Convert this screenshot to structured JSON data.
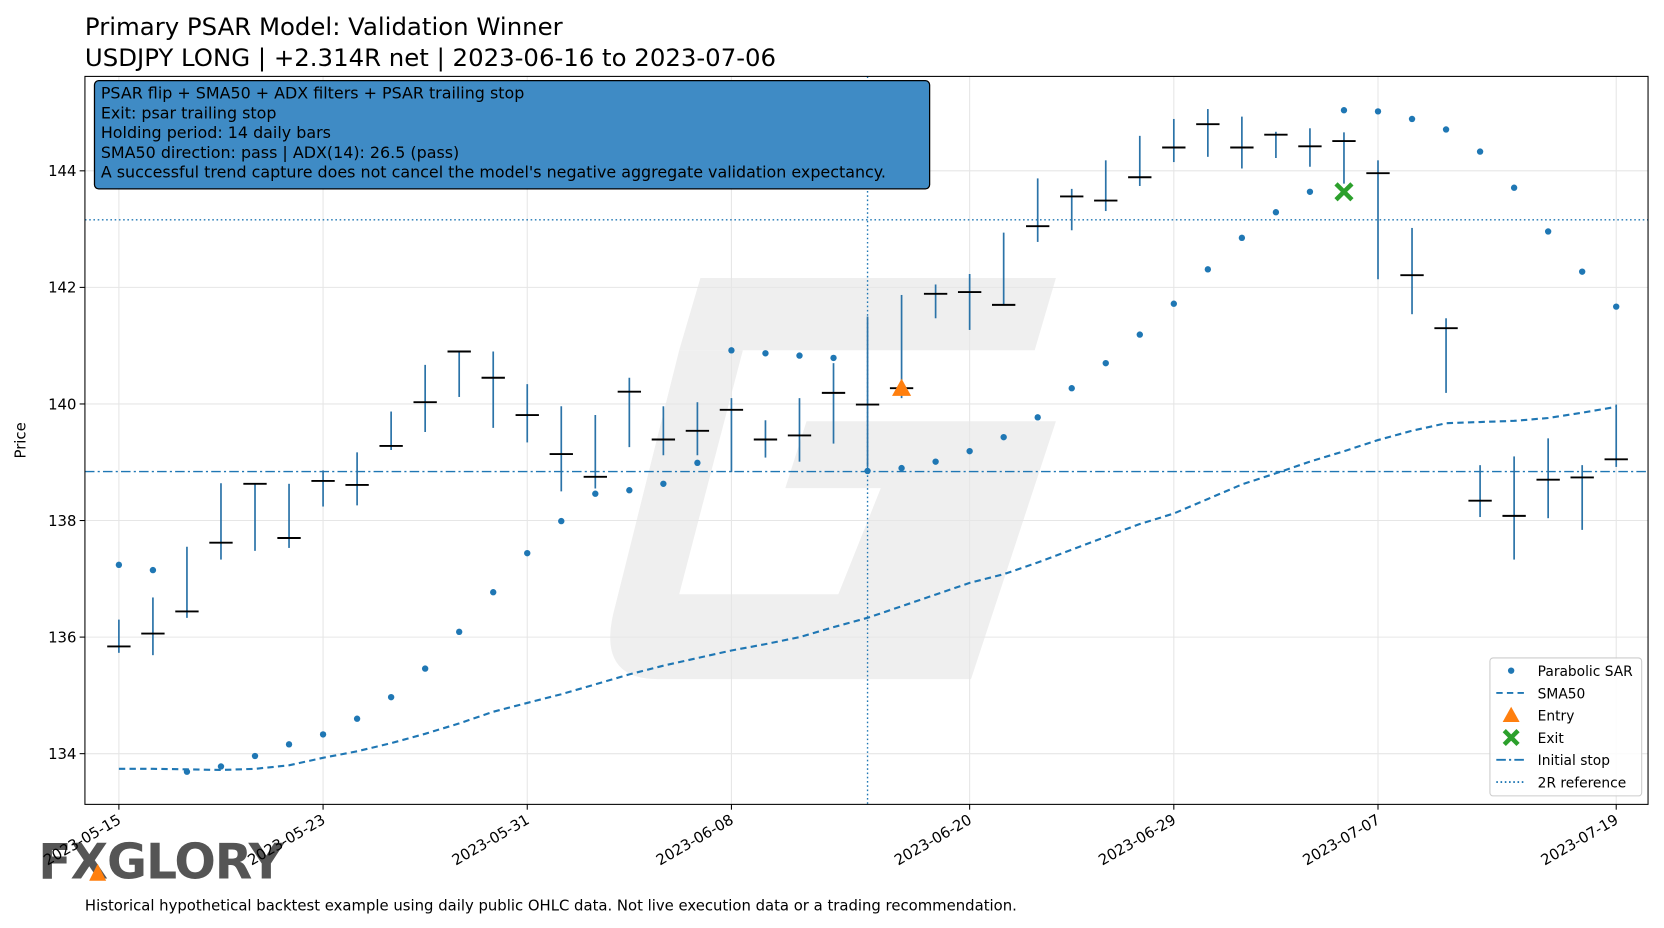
{
  "chart_data": {
    "type": "ohlc",
    "title": "Primary PSAR Model: Validation Winner",
    "subtitle": "USDJPY LONG | +2.314R net | 2023-06-16 to 2023-07-06",
    "ylabel": "Price",
    "categories": [
      "2023-05-15",
      null,
      null,
      null,
      null,
      null,
      "2023-05-23",
      null,
      null,
      null,
      null,
      null,
      "2023-05-31",
      null,
      null,
      null,
      null,
      null,
      "2023-06-08",
      null,
      null,
      null,
      null,
      null,
      null,
      "2023-06-20",
      null,
      null,
      null,
      null,
      null,
      "2023-06-29",
      null,
      null,
      null,
      null,
      null,
      "2023-07-07",
      null,
      null,
      null,
      null,
      null,
      null,
      "2023-07-19"
    ],
    "bars": {
      "color": "#2b73a8",
      "close_color": "#000000",
      "high": [
        136.3,
        136.68,
        137.55,
        138.64,
        138.63,
        138.63,
        138.86,
        139.17,
        139.87,
        140.67,
        140.9,
        140.9,
        140.34,
        139.96,
        139.81,
        140.45,
        139.96,
        140.03,
        140.1,
        139.72,
        140.1,
        140.7,
        141.5,
        141.87,
        142.05,
        142.23,
        142.94,
        143.87,
        143.69,
        144.18,
        144.6,
        144.89,
        145.06,
        144.93,
        144.67,
        144.73,
        144.66,
        144.18,
        143.02,
        141.47,
        138.95,
        139.1,
        139.41,
        138.95,
        139.99
      ],
      "low": [
        135.73,
        135.69,
        136.33,
        137.33,
        137.48,
        137.53,
        138.24,
        138.26,
        139.21,
        139.52,
        140.12,
        139.59,
        139.34,
        138.5,
        138.55,
        139.26,
        139.12,
        139.12,
        138.83,
        139.08,
        139.01,
        139.32,
        138.92,
        140.1,
        141.47,
        141.27,
        141.69,
        142.78,
        142.98,
        143.31,
        143.74,
        144.15,
        144.24,
        144.04,
        144.22,
        144.07,
        143.78,
        142.14,
        141.54,
        140.19,
        138.06,
        137.33,
        138.04,
        137.84,
        138.92
      ],
      "close": [
        135.84,
        136.06,
        136.44,
        137.62,
        138.63,
        137.7,
        138.68,
        138.61,
        139.28,
        140.03,
        140.9,
        140.45,
        139.81,
        139.14,
        138.75,
        140.21,
        139.39,
        139.54,
        139.9,
        139.39,
        139.46,
        140.19,
        139.99,
        140.27,
        141.89,
        141.92,
        141.7,
        143.05,
        143.56,
        143.49,
        143.89,
        144.4,
        144.8,
        144.4,
        144.62,
        144.42,
        144.51,
        143.96,
        142.21,
        141.3,
        138.34,
        138.08,
        138.7,
        138.74,
        139.05
      ]
    },
    "series": [
      {
        "name": "Parabolic SAR",
        "style": "dots",
        "color": "#1f77b4",
        "values": [
          137.24,
          137.15,
          133.69,
          133.78,
          133.96,
          134.16,
          134.33,
          134.6,
          134.97,
          135.46,
          136.09,
          136.77,
          137.44,
          137.99,
          138.46,
          138.52,
          138.63,
          138.99,
          140.92,
          140.87,
          140.83,
          140.79,
          138.85,
          138.9,
          139.01,
          139.19,
          139.43,
          139.77,
          140.27,
          140.7,
          141.19,
          141.72,
          142.31,
          142.85,
          143.29,
          143.64,
          145.04,
          145.02,
          144.89,
          144.71,
          144.33,
          143.71,
          142.96,
          142.27,
          141.67
        ]
      },
      {
        "name": "SMA50",
        "style": "dashed",
        "color": "#1f77b4",
        "values": [
          133.74,
          133.74,
          133.73,
          133.72,
          133.74,
          133.8,
          133.93,
          134.04,
          134.18,
          134.34,
          134.52,
          134.72,
          134.87,
          135.02,
          135.19,
          135.36,
          135.51,
          135.64,
          135.77,
          135.88,
          136.0,
          136.17,
          136.33,
          136.53,
          136.73,
          136.93,
          137.08,
          137.28,
          137.5,
          137.72,
          137.94,
          138.12,
          138.37,
          138.62,
          138.81,
          139.01,
          139.19,
          139.38,
          139.54,
          139.67,
          139.69,
          139.71,
          139.76,
          139.85,
          139.95
        ]
      }
    ],
    "markers": [
      {
        "name": "Entry",
        "marker": "triangle",
        "color": "#ff7f0e",
        "x": 23,
        "value": 140.27
      },
      {
        "name": "Exit",
        "marker": "x",
        "color": "#2ca02c",
        "x": 36,
        "value": 143.64
      }
    ],
    "hlines": [
      {
        "name": "Initial stop",
        "style": "dashdot",
        "color": "#1f77b4",
        "value": 138.84
      },
      {
        "name": "2R reference",
        "style": "dotted",
        "color": "#1f77b4",
        "value": 143.16
      }
    ],
    "vline": {
      "style": "dotted",
      "color": "#1f77b4",
      "x": 22
    },
    "ylim": [
      133.13,
      145.62
    ],
    "yticks": [
      134,
      136,
      138,
      140,
      142,
      144
    ],
    "grid": true,
    "legend": "lower right",
    "annotation": [
      "PSAR flip + SMA50 + ADX filters + PSAR trailing stop",
      "Exit: psar trailing stop",
      "Holding period: 14 daily bars",
      "SMA50 direction: pass | ADX(14): 26.5 (pass)",
      "A successful trend capture does not cancel the model's negative aggregate validation expectancy."
    ],
    "footer": "Historical hypothetical backtest example using daily public OHLC data. Not live execution data or a trading recommendation.",
    "watermark": "FXGLORY"
  }
}
